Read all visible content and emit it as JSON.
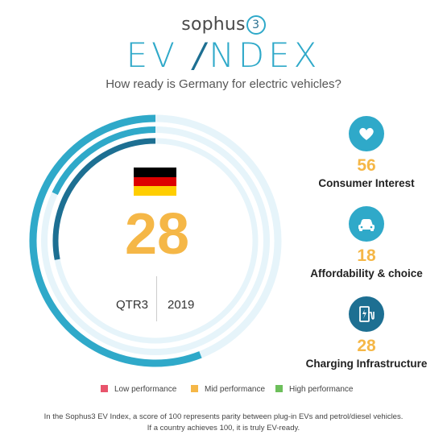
{
  "brand": {
    "name": "sophus",
    "digit": "3"
  },
  "title": {
    "left": "EV ",
    "bolt": "/",
    "right": "NDEX"
  },
  "subtitle": "How ready is Germany for electric vehicles?",
  "gauge": {
    "score": "28",
    "score_value": 28,
    "quarter": "QTR3",
    "year": "2019",
    "flag_colors": [
      "#000000",
      "#dd0000",
      "#ffce00"
    ],
    "rings": [
      {
        "name": "Consumer Interest",
        "value": 56
      },
      {
        "name": "Affordability & choice",
        "value": 18
      },
      {
        "name": "Charging Infrastructure",
        "value": 28
      }
    ]
  },
  "metrics": [
    {
      "icon": "heart-icon",
      "value": "56",
      "label": "Consumer Interest"
    },
    {
      "icon": "car-icon",
      "value": "18",
      "label": "Affordability & choice"
    },
    {
      "icon": "charging-station-icon",
      "value": "28",
      "label": "Charging Infrastructure"
    }
  ],
  "legend": [
    {
      "label": "Low performance",
      "color": "#e8546c"
    },
    {
      "label": "Mid performance",
      "color": "#f5b747"
    },
    {
      "label": "High performance",
      "color": "#6dbf5b"
    }
  ],
  "footnote": {
    "line1": "In the Sophus3 EV Index, a score of 100 represents parity between plug-in EVs and petrol/diesel vehicles.",
    "line2": "If a country achieves 100, it is truly EV-ready."
  },
  "colors": {
    "accent": "#2fa9c9",
    "dark": "#1d6f92",
    "track": "#e6f4fa",
    "score": "#f5b747"
  }
}
